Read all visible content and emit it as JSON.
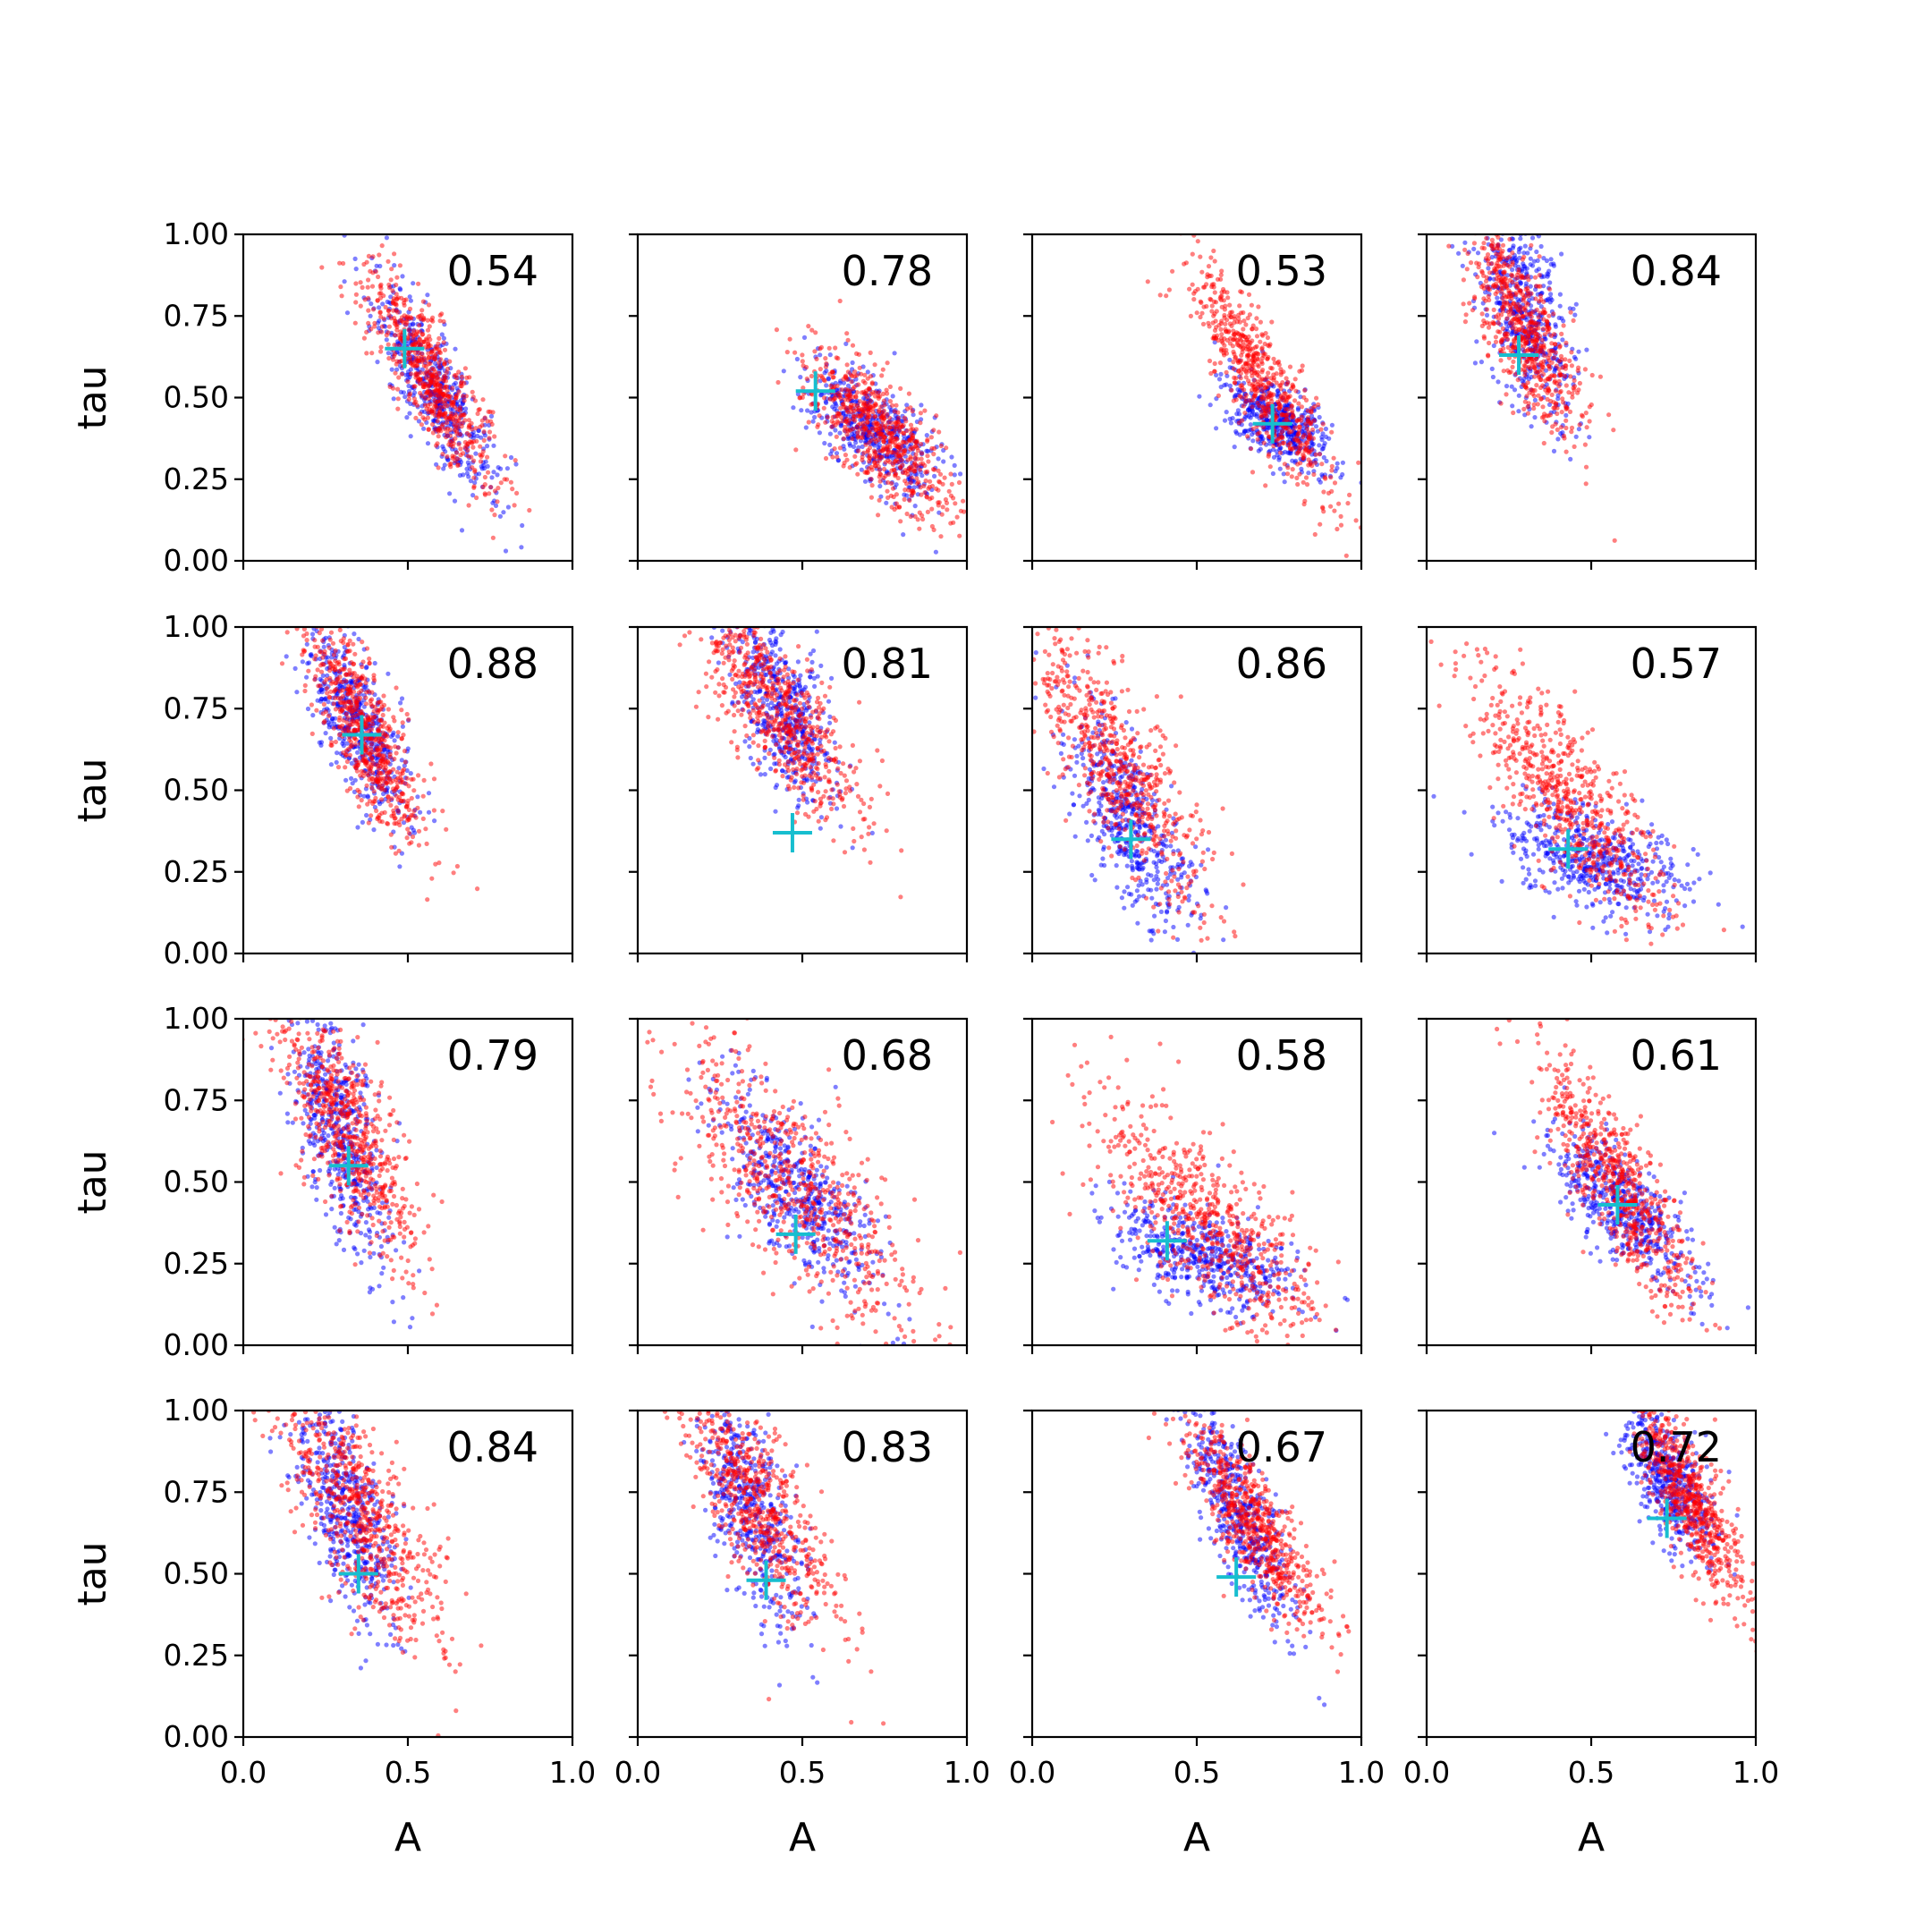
{
  "chart_data": {
    "type": "scatter",
    "layout": "4x4 grid of subplots",
    "xlabel": "A",
    "ylabel": "tau",
    "xlim": [
      0,
      1
    ],
    "ylim": [
      0,
      1
    ],
    "x_ticks": [
      "0.0",
      "0.5",
      "1.0"
    ],
    "y_ticks": [
      "0.00",
      "0.25",
      "0.50",
      "0.75",
      "1.00"
    ],
    "grid": false,
    "legend": "none",
    "series_colors": [
      "#0000ff",
      "#ff0000"
    ],
    "marker_color": "#17becf",
    "panels": [
      {
        "value": "0.54",
        "marker": [
          0.49,
          0.65
        ],
        "red": {
          "cx": 0.57,
          "cy": 0.56,
          "sx": 0.1,
          "sy": 0.17,
          "rho": -0.85,
          "n": 650
        },
        "blue": {
          "cx": 0.58,
          "cy": 0.52,
          "sx": 0.09,
          "sy": 0.15,
          "rho": -0.82,
          "n": 500
        }
      },
      {
        "value": "0.78",
        "marker": [
          0.54,
          0.52
        ],
        "red": {
          "cx": 0.73,
          "cy": 0.4,
          "sx": 0.11,
          "sy": 0.13,
          "rho": -0.72,
          "n": 650
        },
        "blue": {
          "cx": 0.71,
          "cy": 0.41,
          "sx": 0.1,
          "sy": 0.1,
          "rho": -0.62,
          "n": 500
        }
      },
      {
        "value": "0.53",
        "marker": [
          0.73,
          0.42
        ],
        "red": {
          "cx": 0.7,
          "cy": 0.55,
          "sx": 0.11,
          "sy": 0.18,
          "rho": -0.85,
          "n": 650
        },
        "blue": {
          "cx": 0.75,
          "cy": 0.42,
          "sx": 0.08,
          "sy": 0.07,
          "rho": -0.55,
          "n": 500
        }
      },
      {
        "value": "0.84",
        "marker": [
          0.28,
          0.63
        ],
        "red": {
          "cx": 0.29,
          "cy": 0.72,
          "sx": 0.09,
          "sy": 0.17,
          "rho": -0.75,
          "n": 650
        },
        "blue": {
          "cx": 0.3,
          "cy": 0.76,
          "sx": 0.07,
          "sy": 0.16,
          "rho": -0.55,
          "n": 500
        }
      },
      {
        "value": "0.88",
        "marker": [
          0.36,
          0.67
        ],
        "red": {
          "cx": 0.37,
          "cy": 0.68,
          "sx": 0.09,
          "sy": 0.17,
          "rho": -0.78,
          "n": 650
        },
        "blue": {
          "cx": 0.35,
          "cy": 0.7,
          "sx": 0.08,
          "sy": 0.15,
          "rho": -0.7,
          "n": 500
        }
      },
      {
        "value": "0.81",
        "marker": [
          0.47,
          0.37
        ],
        "red": {
          "cx": 0.42,
          "cy": 0.75,
          "sx": 0.13,
          "sy": 0.17,
          "rho": -0.78,
          "n": 650
        },
        "blue": {
          "cx": 0.44,
          "cy": 0.75,
          "sx": 0.08,
          "sy": 0.15,
          "rho": -0.6,
          "n": 500
        }
      },
      {
        "value": "0.86",
        "marker": [
          0.3,
          0.35
        ],
        "red": {
          "cx": 0.26,
          "cy": 0.58,
          "sx": 0.14,
          "sy": 0.23,
          "rho": -0.82,
          "n": 650
        },
        "blue": {
          "cx": 0.3,
          "cy": 0.4,
          "sx": 0.1,
          "sy": 0.17,
          "rho": -0.72,
          "n": 500
        }
      },
      {
        "value": "0.57",
        "marker": [
          0.43,
          0.32
        ],
        "red": {
          "cx": 0.43,
          "cy": 0.47,
          "sx": 0.15,
          "sy": 0.2,
          "rho": -0.78,
          "n": 650
        },
        "blue": {
          "cx": 0.51,
          "cy": 0.29,
          "sx": 0.14,
          "sy": 0.08,
          "rho": -0.45,
          "n": 500
        }
      },
      {
        "value": "0.79",
        "marker": [
          0.32,
          0.55
        ],
        "red": {
          "cx": 0.32,
          "cy": 0.65,
          "sx": 0.11,
          "sy": 0.2,
          "rho": -0.78,
          "n": 650
        },
        "blue": {
          "cx": 0.3,
          "cy": 0.65,
          "sx": 0.07,
          "sy": 0.2,
          "rho": -0.65,
          "n": 500
        }
      },
      {
        "value": "0.68",
        "marker": [
          0.48,
          0.34
        ],
        "red": {
          "cx": 0.46,
          "cy": 0.5,
          "sx": 0.19,
          "sy": 0.22,
          "rho": -0.78,
          "n": 650
        },
        "blue": {
          "cx": 0.48,
          "cy": 0.47,
          "sx": 0.12,
          "sy": 0.16,
          "rho": -0.72,
          "n": 500
        }
      },
      {
        "value": "0.58",
        "marker": [
          0.41,
          0.32
        ],
        "red": {
          "cx": 0.53,
          "cy": 0.38,
          "sx": 0.17,
          "sy": 0.19,
          "rho": -0.75,
          "n": 650
        },
        "blue": {
          "cx": 0.53,
          "cy": 0.27,
          "sx": 0.15,
          "sy": 0.08,
          "rho": -0.55,
          "n": 500
        }
      },
      {
        "value": "0.61",
        "marker": [
          0.58,
          0.43
        ],
        "red": {
          "cx": 0.58,
          "cy": 0.5,
          "sx": 0.12,
          "sy": 0.2,
          "rho": -0.85,
          "n": 650
        },
        "blue": {
          "cx": 0.59,
          "cy": 0.43,
          "sx": 0.11,
          "sy": 0.12,
          "rho": -0.75,
          "n": 500
        }
      },
      {
        "value": "0.84",
        "marker": [
          0.35,
          0.5
        ],
        "red": {
          "cx": 0.36,
          "cy": 0.68,
          "sx": 0.12,
          "sy": 0.2,
          "rho": -0.72,
          "n": 650
        },
        "blue": {
          "cx": 0.31,
          "cy": 0.7,
          "sx": 0.08,
          "sy": 0.18,
          "rho": -0.62,
          "n": 500
        }
      },
      {
        "value": "0.83",
        "marker": [
          0.39,
          0.48
        ],
        "red": {
          "cx": 0.36,
          "cy": 0.72,
          "sx": 0.12,
          "sy": 0.19,
          "rho": -0.75,
          "n": 650
        },
        "blue": {
          "cx": 0.34,
          "cy": 0.7,
          "sx": 0.08,
          "sy": 0.19,
          "rho": -0.65,
          "n": 500
        }
      },
      {
        "value": "0.67",
        "marker": [
          0.62,
          0.49
        ],
        "red": {
          "cx": 0.68,
          "cy": 0.65,
          "sx": 0.11,
          "sy": 0.17,
          "rho": -0.85,
          "n": 650
        },
        "blue": {
          "cx": 0.63,
          "cy": 0.68,
          "sx": 0.08,
          "sy": 0.17,
          "rho": -0.78,
          "n": 500
        }
      },
      {
        "value": "0.72",
        "marker": [
          0.73,
          0.67
        ],
        "red": {
          "cx": 0.8,
          "cy": 0.72,
          "sx": 0.08,
          "sy": 0.16,
          "rho": -0.8,
          "n": 650
        },
        "blue": {
          "cx": 0.74,
          "cy": 0.78,
          "sx": 0.07,
          "sy": 0.12,
          "rho": -0.65,
          "n": 500
        }
      }
    ]
  }
}
